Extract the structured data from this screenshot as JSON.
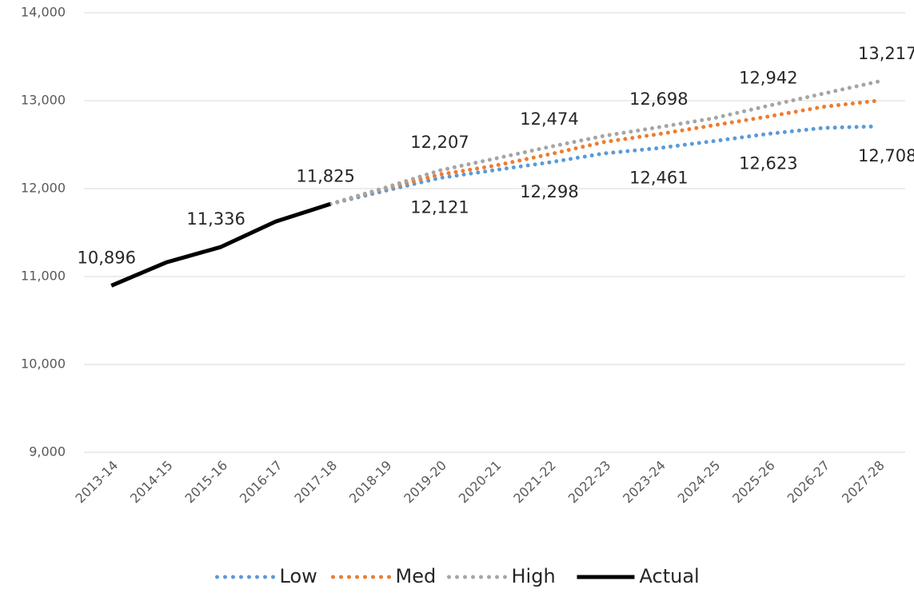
{
  "chart_data": {
    "type": "line",
    "categories": [
      "2013-14",
      "2014-15",
      "2015-16",
      "2016-17",
      "2017-18",
      "2018-19",
      "2019-20",
      "2020-21",
      "2021-22",
      "2022-23",
      "2023-24",
      "2024-25",
      "2025-26",
      "2026-27",
      "2027-28"
    ],
    "ylim": [
      9000,
      14000
    ],
    "yticks": [
      {
        "value": 9000,
        "label": "9,000"
      },
      {
        "value": 10000,
        "label": "10,000"
      },
      {
        "value": 11000,
        "label": "11,000"
      },
      {
        "value": 12000,
        "label": "12,000"
      },
      {
        "value": 13000,
        "label": "13,000"
      },
      {
        "value": 14000,
        "label": "14,000"
      }
    ],
    "grid": true,
    "legend": "bottom",
    "series": [
      {
        "name": "Low",
        "color": "#5b9bd5",
        "style": "dotted",
        "values": [
          null,
          null,
          null,
          null,
          11825,
          11975,
          12121,
          12210,
          12298,
          12400,
          12461,
          12540,
          12623,
          12690,
          12708
        ],
        "value_labels": [
          null,
          null,
          null,
          null,
          null,
          null,
          "12,121",
          null,
          "12,298",
          null,
          "12,461",
          null,
          "12,623",
          null,
          "12,708"
        ]
      },
      {
        "name": "Med",
        "color": "#ed7d31",
        "style": "dotted",
        "values": [
          null,
          null,
          null,
          null,
          11825,
          12000,
          12160,
          12260,
          12390,
          12530,
          12620,
          12720,
          12820,
          12930,
          13000
        ]
      },
      {
        "name": "High",
        "color": "#a5a5a5",
        "style": "dotted",
        "values": [
          null,
          null,
          null,
          null,
          11825,
          12010,
          12207,
          12340,
          12474,
          12600,
          12698,
          12800,
          12942,
          13080,
          13217
        ],
        "value_labels": [
          null,
          null,
          null,
          null,
          null,
          null,
          "12,207",
          null,
          "12,474",
          null,
          "12,698",
          null,
          "12,942",
          null,
          "13,217"
        ]
      },
      {
        "name": "Actual",
        "color": "#000000",
        "style": "solid",
        "values": [
          10896,
          11160,
          11336,
          11625,
          11825,
          null,
          null,
          null,
          null,
          null,
          null,
          null,
          null,
          null,
          null
        ],
        "value_labels": [
          "10,896",
          null,
          "11,336",
          null,
          "11,825",
          null,
          null,
          null,
          null,
          null,
          null,
          null,
          null,
          null,
          null
        ]
      }
    ]
  }
}
